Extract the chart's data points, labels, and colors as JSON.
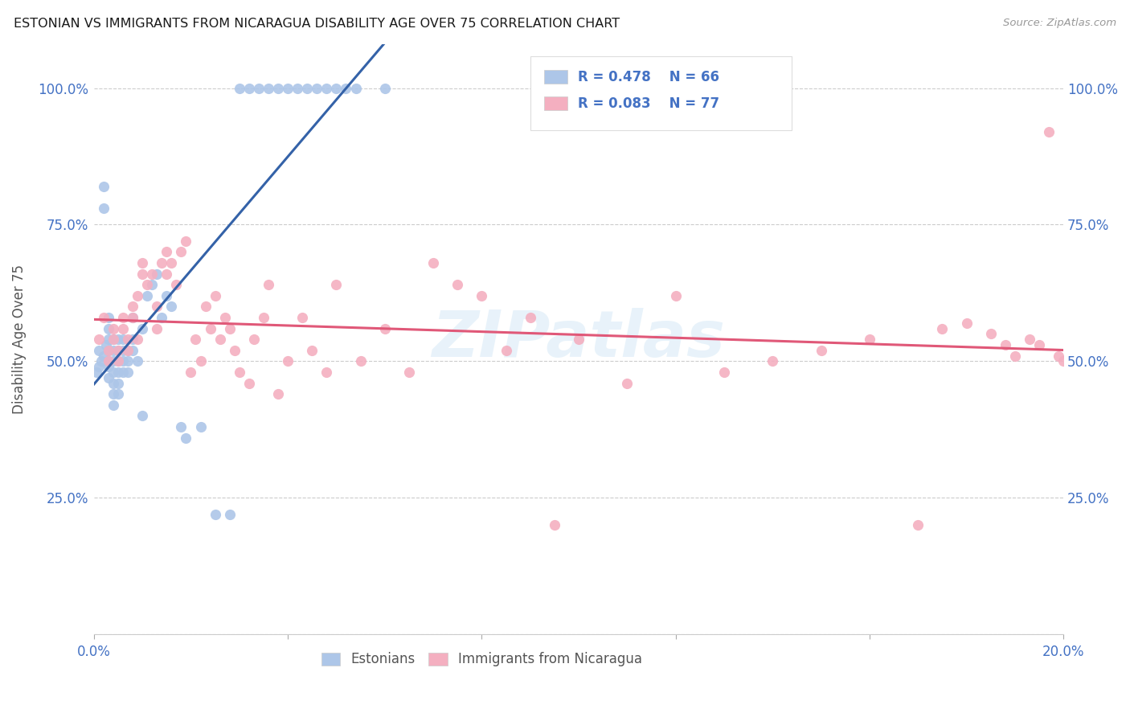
{
  "title": "ESTONIAN VS IMMIGRANTS FROM NICARAGUA DISABILITY AGE OVER 75 CORRELATION CHART",
  "source": "Source: ZipAtlas.com",
  "ylabel": "Disability Age Over 75",
  "legend_estonians": "Estonians",
  "legend_nicaragua": "Immigrants from Nicaragua",
  "R_estonian": 0.478,
  "N_estonian": 66,
  "R_nicaragua": 0.083,
  "N_nicaragua": 77,
  "x_min": 0.0,
  "x_max": 0.2,
  "y_min": 0.0,
  "y_max": 1.08,
  "color_estonian": "#adc6e8",
  "color_nicaragua": "#f4afc0",
  "line_color_estonian": "#3462a8",
  "line_color_nicaragua": "#e05878",
  "watermark": "ZIPatlas",
  "title_color": "#1a1a1a",
  "axis_label_color": "#4472c4",
  "text_color": "#4472c4",
  "estonian_x": [
    0.0005,
    0.001,
    0.001,
    0.0015,
    0.002,
    0.002,
    0.002,
    0.0025,
    0.003,
    0.003,
    0.003,
    0.003,
    0.003,
    0.003,
    0.003,
    0.004,
    0.004,
    0.004,
    0.004,
    0.004,
    0.004,
    0.004,
    0.005,
    0.005,
    0.005,
    0.005,
    0.005,
    0.005,
    0.006,
    0.006,
    0.006,
    0.006,
    0.007,
    0.007,
    0.007,
    0.008,
    0.008,
    0.008,
    0.009,
    0.01,
    0.01,
    0.011,
    0.012,
    0.013,
    0.014,
    0.015,
    0.016,
    0.018,
    0.019,
    0.022,
    0.025,
    0.028,
    0.03,
    0.032,
    0.034,
    0.036,
    0.038,
    0.04,
    0.042,
    0.044,
    0.046,
    0.048,
    0.05,
    0.052,
    0.054,
    0.06
  ],
  "estonian_y": [
    0.48,
    0.52,
    0.49,
    0.5,
    0.78,
    0.82,
    0.51,
    0.53,
    0.5,
    0.52,
    0.47,
    0.49,
    0.54,
    0.56,
    0.58,
    0.48,
    0.5,
    0.52,
    0.54,
    0.46,
    0.44,
    0.42,
    0.52,
    0.5,
    0.48,
    0.54,
    0.46,
    0.44,
    0.52,
    0.5,
    0.48,
    0.54,
    0.52,
    0.5,
    0.48,
    0.58,
    0.54,
    0.52,
    0.5,
    0.56,
    0.4,
    0.62,
    0.64,
    0.66,
    0.58,
    0.62,
    0.6,
    0.38,
    0.36,
    0.38,
    0.22,
    0.22,
    1.0,
    1.0,
    1.0,
    1.0,
    1.0,
    1.0,
    1.0,
    1.0,
    1.0,
    1.0,
    1.0,
    1.0,
    1.0,
    1.0
  ],
  "nicaragua_x": [
    0.001,
    0.002,
    0.003,
    0.003,
    0.004,
    0.004,
    0.005,
    0.005,
    0.006,
    0.006,
    0.007,
    0.007,
    0.008,
    0.008,
    0.009,
    0.009,
    0.01,
    0.01,
    0.011,
    0.012,
    0.013,
    0.013,
    0.014,
    0.015,
    0.015,
    0.016,
    0.017,
    0.018,
    0.019,
    0.02,
    0.021,
    0.022,
    0.023,
    0.024,
    0.025,
    0.026,
    0.027,
    0.028,
    0.029,
    0.03,
    0.032,
    0.033,
    0.035,
    0.036,
    0.038,
    0.04,
    0.043,
    0.045,
    0.048,
    0.05,
    0.055,
    0.06,
    0.065,
    0.07,
    0.075,
    0.08,
    0.085,
    0.09,
    0.095,
    0.1,
    0.11,
    0.12,
    0.13,
    0.14,
    0.15,
    0.16,
    0.17,
    0.175,
    0.18,
    0.185,
    0.188,
    0.19,
    0.193,
    0.195,
    0.197,
    0.199,
    0.2
  ],
  "nicaragua_y": [
    0.54,
    0.58,
    0.52,
    0.5,
    0.56,
    0.54,
    0.52,
    0.5,
    0.58,
    0.56,
    0.52,
    0.54,
    0.6,
    0.58,
    0.54,
    0.62,
    0.68,
    0.66,
    0.64,
    0.66,
    0.6,
    0.56,
    0.68,
    0.66,
    0.7,
    0.68,
    0.64,
    0.7,
    0.72,
    0.48,
    0.54,
    0.5,
    0.6,
    0.56,
    0.62,
    0.54,
    0.58,
    0.56,
    0.52,
    0.48,
    0.46,
    0.54,
    0.58,
    0.64,
    0.44,
    0.5,
    0.58,
    0.52,
    0.48,
    0.64,
    0.5,
    0.56,
    0.48,
    0.68,
    0.64,
    0.62,
    0.52,
    0.58,
    0.2,
    0.54,
    0.46,
    0.62,
    0.48,
    0.5,
    0.52,
    0.54,
    0.2,
    0.56,
    0.57,
    0.55,
    0.53,
    0.51,
    0.54,
    0.53,
    0.92,
    0.51,
    0.5
  ]
}
